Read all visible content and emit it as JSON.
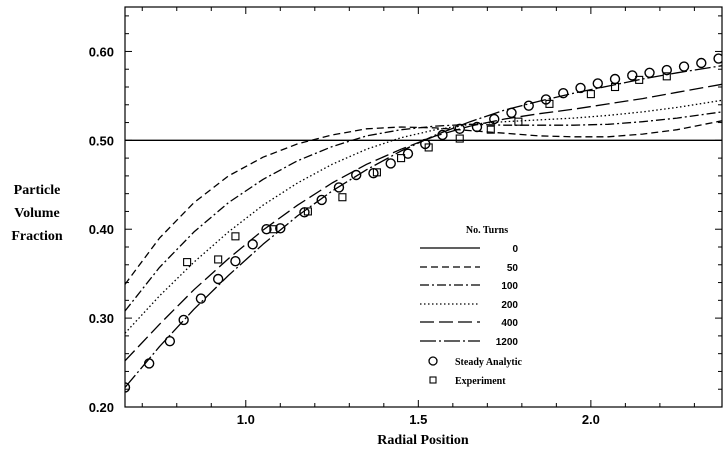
{
  "chart_data": {
    "type": "line",
    "xlabel": "Radial Position",
    "ylabel": [
      "Particle",
      "Volume",
      "Fraction"
    ],
    "xlim": [
      0.65,
      2.38
    ],
    "ylim": [
      0.2,
      0.65
    ],
    "x_ticks": [
      1.0,
      1.5,
      2.0
    ],
    "x_tick_labels": [
      "1.0",
      "1.5",
      "2.0"
    ],
    "y_ticks": [
      0.2,
      0.3,
      0.4,
      0.5,
      0.6
    ],
    "y_tick_labels": [
      "0.20",
      "0.30",
      "0.40",
      "0.50",
      "0.60"
    ],
    "grid": false,
    "legend_title": "No. Turns",
    "legend_position": "center-right",
    "series": [
      {
        "name": "0",
        "style": "solid",
        "x": [
          0.65,
          2.38
        ],
        "y": [
          0.5,
          0.5
        ]
      },
      {
        "name": "50",
        "style": "short-dash",
        "x": [
          0.65,
          0.75,
          0.85,
          0.95,
          1.05,
          1.15,
          1.25,
          1.35,
          1.45,
          1.55,
          1.65,
          1.75,
          1.85,
          1.95,
          2.05,
          2.15,
          2.25,
          2.38
        ],
        "y": [
          0.338,
          0.39,
          0.43,
          0.46,
          0.481,
          0.496,
          0.506,
          0.513,
          0.515,
          0.514,
          0.511,
          0.508,
          0.505,
          0.504,
          0.504,
          0.507,
          0.512,
          0.522
        ]
      },
      {
        "name": "100",
        "style": "dash-dot",
        "x": [
          0.65,
          0.75,
          0.85,
          0.95,
          1.05,
          1.15,
          1.25,
          1.35,
          1.45,
          1.55,
          1.65,
          1.75,
          1.85,
          1.95,
          2.05,
          2.15,
          2.25,
          2.38
        ],
        "y": [
          0.308,
          0.357,
          0.397,
          0.43,
          0.456,
          0.477,
          0.493,
          0.505,
          0.512,
          0.516,
          0.518,
          0.517,
          0.517,
          0.517,
          0.518,
          0.521,
          0.525,
          0.532
        ]
      },
      {
        "name": "200",
        "style": "dotted",
        "x": [
          0.65,
          0.75,
          0.85,
          0.95,
          1.05,
          1.15,
          1.25,
          1.35,
          1.45,
          1.55,
          1.65,
          1.75,
          1.85,
          1.95,
          2.05,
          2.15,
          2.25,
          2.38
        ],
        "y": [
          0.283,
          0.325,
          0.363,
          0.397,
          0.427,
          0.452,
          0.473,
          0.49,
          0.503,
          0.512,
          0.518,
          0.521,
          0.523,
          0.525,
          0.528,
          0.532,
          0.537,
          0.545
        ]
      },
      {
        "name": "400",
        "style": "long-dash",
        "x": [
          0.65,
          0.75,
          0.85,
          0.95,
          1.05,
          1.15,
          1.25,
          1.35,
          1.45,
          1.55,
          1.65,
          1.75,
          1.85,
          1.95,
          2.05,
          2.15,
          2.25,
          2.38
        ],
        "y": [
          0.252,
          0.293,
          0.332,
          0.367,
          0.399,
          0.427,
          0.452,
          0.473,
          0.49,
          0.505,
          0.516,
          0.524,
          0.53,
          0.535,
          0.541,
          0.547,
          0.554,
          0.563
        ]
      },
      {
        "name": "1200",
        "style": "long-dash-dot",
        "x": [
          0.65,
          0.75,
          0.85,
          0.95,
          1.05,
          1.15,
          1.25,
          1.35,
          1.45,
          1.55,
          1.65,
          1.75,
          1.85,
          1.95,
          2.05,
          2.15,
          2.25,
          2.38
        ],
        "y": [
          0.222,
          0.268,
          0.31,
          0.348,
          0.383,
          0.415,
          0.443,
          0.467,
          0.488,
          0.506,
          0.521,
          0.534,
          0.544,
          0.553,
          0.561,
          0.569,
          0.576,
          0.584
        ]
      },
      {
        "name": "Steady Analytic",
        "style": "circle-marker",
        "x": [
          0.65,
          0.72,
          0.78,
          0.82,
          0.87,
          0.92,
          0.97,
          1.02,
          1.06,
          1.1,
          1.17,
          1.22,
          1.27,
          1.32,
          1.37,
          1.42,
          1.47,
          1.52,
          1.57,
          1.62,
          1.67,
          1.72,
          1.77,
          1.82,
          1.87,
          1.92,
          1.97,
          2.02,
          2.07,
          2.12,
          2.17,
          2.22,
          2.27,
          2.32,
          2.37
        ],
        "y": [
          0.222,
          0.249,
          0.274,
          0.298,
          0.322,
          0.344,
          0.364,
          0.383,
          0.4,
          0.401,
          0.419,
          0.433,
          0.447,
          0.461,
          0.463,
          0.474,
          0.485,
          0.496,
          0.506,
          0.513,
          0.515,
          0.524,
          0.531,
          0.539,
          0.546,
          0.553,
          0.559,
          0.564,
          0.569,
          0.573,
          0.576,
          0.579,
          0.583,
          0.587,
          0.592
        ]
      },
      {
        "name": "Experiment",
        "style": "square-marker",
        "x": [
          0.83,
          0.92,
          0.97,
          1.08,
          1.18,
          1.28,
          1.38,
          1.45,
          1.53,
          1.62,
          1.71,
          1.79,
          1.88,
          2.0,
          2.07,
          2.14,
          2.22
        ],
        "y": [
          0.363,
          0.366,
          0.392,
          0.4,
          0.42,
          0.436,
          0.464,
          0.48,
          0.492,
          0.502,
          0.512,
          0.521,
          0.541,
          0.552,
          0.56,
          0.568,
          0.572
        ]
      }
    ]
  }
}
